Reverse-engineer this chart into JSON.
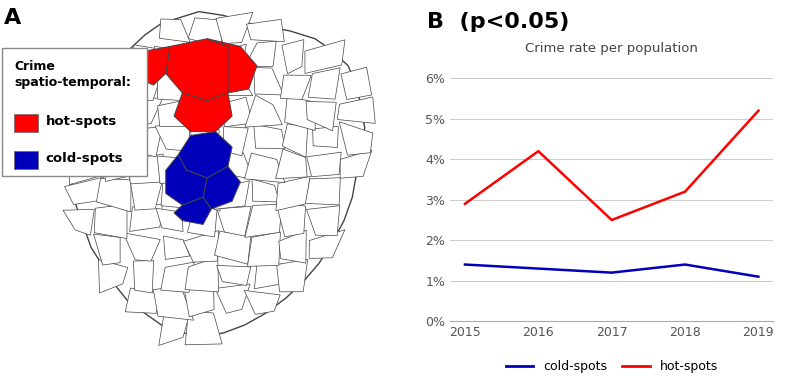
{
  "panel_a_label": "A",
  "panel_b_label": "B  (p<0.05)",
  "legend_title": "Crime\nspatio-temporal:",
  "legend_hot": "hot-spots",
  "legend_cold": "cold-spots",
  "hot_color": "#FF0000",
  "cold_color": "#0000BB",
  "map_border_color": "#444444",
  "map_bg_color": "#FFFFFF",
  "years": [
    2015,
    2016,
    2017,
    2018,
    2019
  ],
  "hot_spots": [
    0.029,
    0.042,
    0.025,
    0.032,
    0.052
  ],
  "cold_spots": [
    0.014,
    0.013,
    0.012,
    0.014,
    0.011
  ],
  "chart_title": "Crime rate per population",
  "chart_title_fontsize": 9.5,
  "ylabel_ticks": [
    "0%",
    "1%",
    "2%",
    "3%",
    "4%",
    "5%",
    "6%"
  ],
  "ytick_vals": [
    0.0,
    0.01,
    0.02,
    0.03,
    0.04,
    0.05,
    0.06
  ],
  "ylim": [
    0.0,
    0.065
  ],
  "line_width": 1.8,
  "legend_line_label_cold": "cold-spots",
  "legend_line_label_hot": "hot-spots",
  "bg_color": "#FFFFFF",
  "map_region_color": "#FFFFFF",
  "map_line_color": "#444444"
}
